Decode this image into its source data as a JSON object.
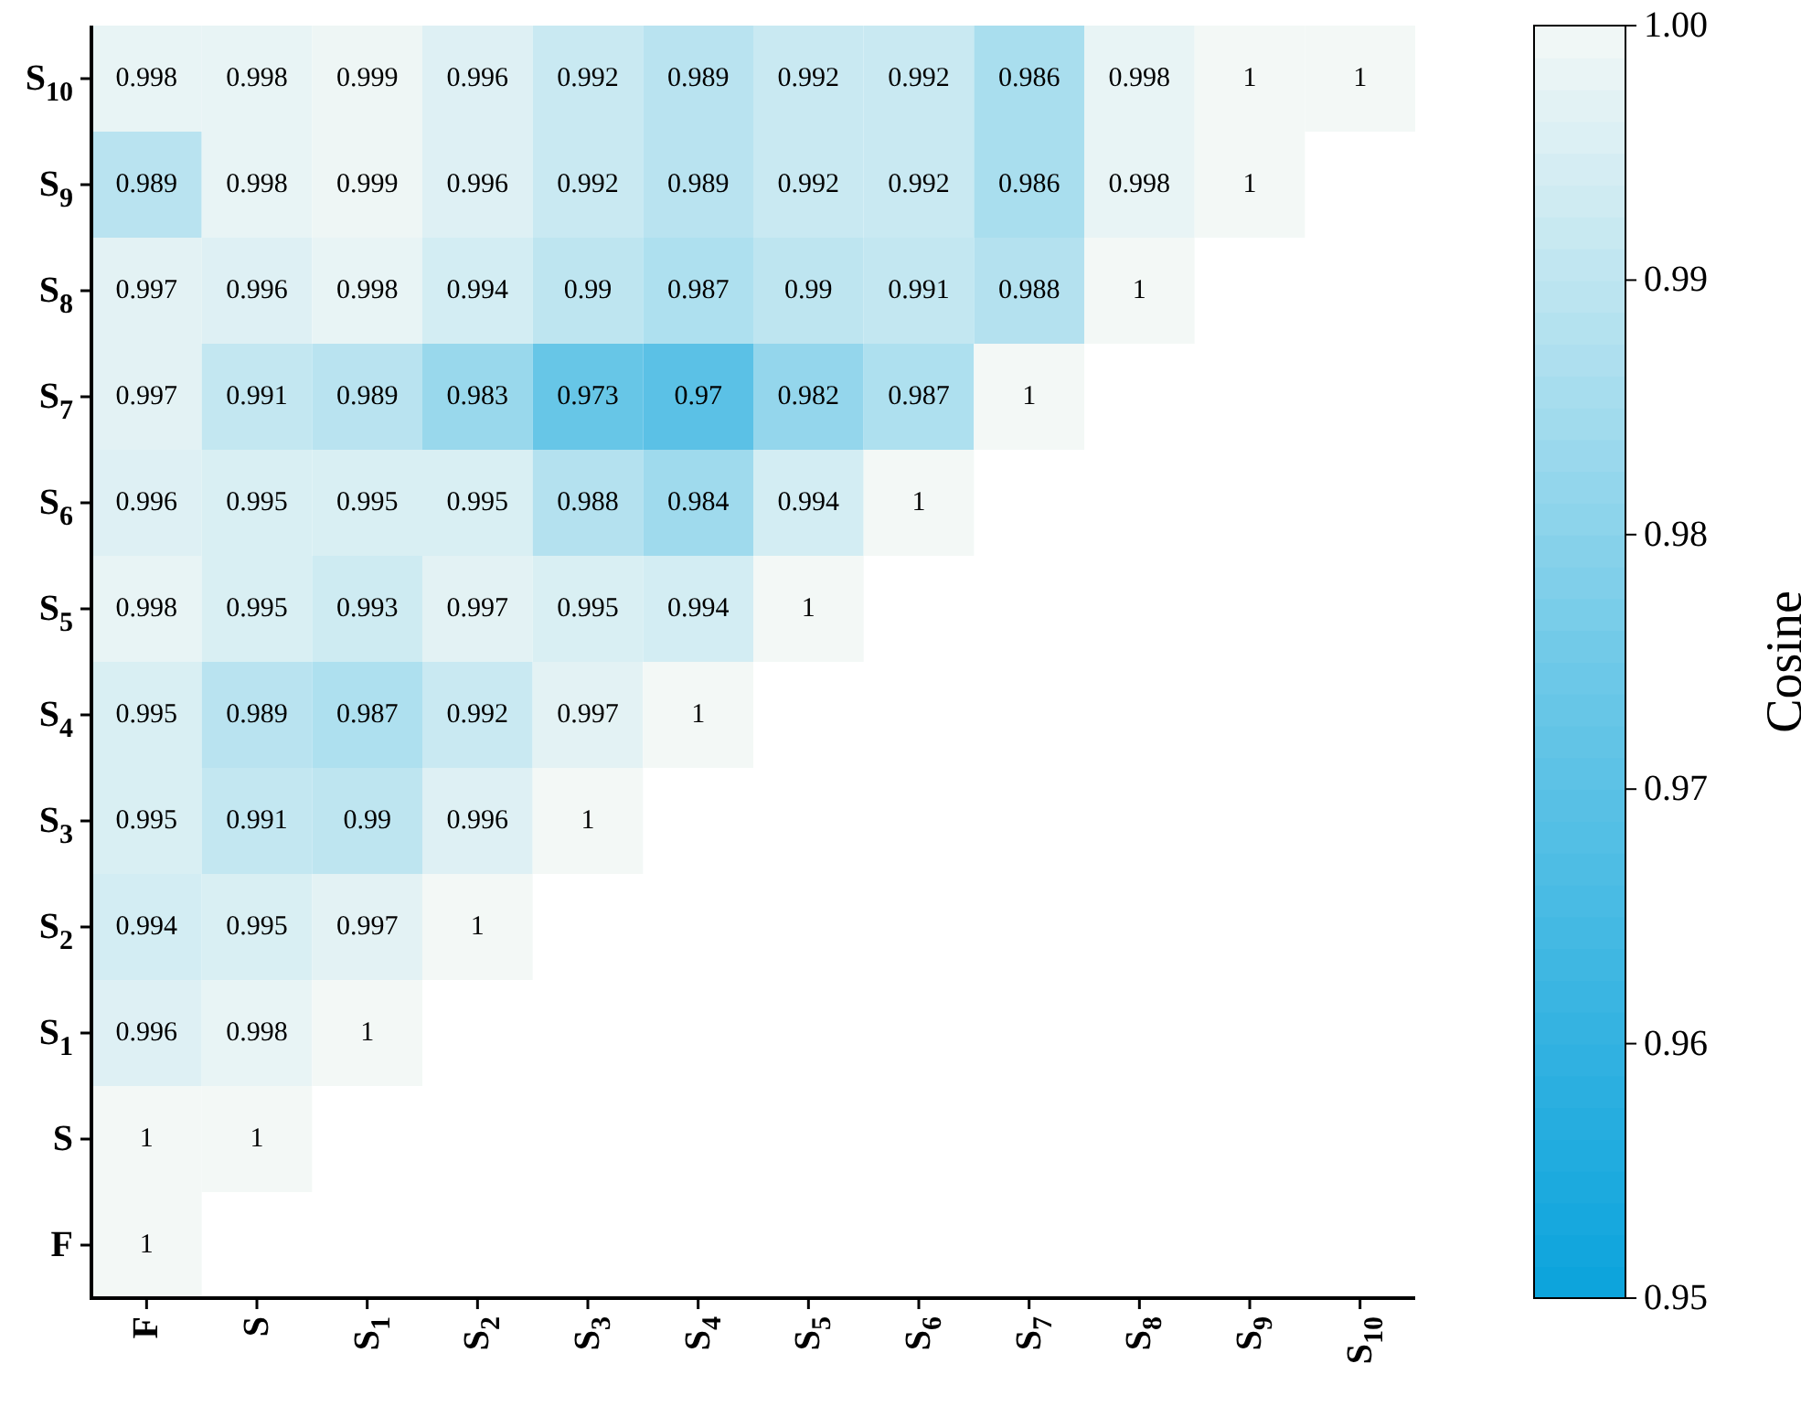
{
  "chart_data": {
    "type": "heatmap",
    "clabel": "Cosine",
    "categories": [
      "F",
      "S",
      "S$_{1}$",
      "S$_{2}$",
      "S$_{3}$",
      "S$_{4}$",
      "S$_{5}$",
      "S$_{6}$",
      "S$_{7}$",
      "S$_{8}$",
      "S$_{9}$",
      "S$_{10}$"
    ],
    "y_categories": [
      "S$_{10}$",
      "S$_{9}$",
      "S$_{8}$",
      "S$_{7}$",
      "S$_{6}$",
      "S$_{5}$",
      "S$_{4}$",
      "S$_{3}$",
      "S$_{2}$",
      "S$_{1}$",
      "S",
      "F"
    ],
    "cells": [
      [
        0.998,
        0.998,
        0.999,
        0.996,
        0.992,
        0.989,
        0.992,
        0.992,
        0.986,
        0.998,
        1,
        1
      ],
      [
        0.989,
        0.998,
        0.999,
        0.996,
        0.992,
        0.989,
        0.992,
        0.992,
        0.986,
        0.998,
        1,
        null
      ],
      [
        0.997,
        0.996,
        0.998,
        0.994,
        0.99,
        0.987,
        0.99,
        0.991,
        0.988,
        1,
        null,
        null
      ],
      [
        0.997,
        0.991,
        0.989,
        0.983,
        0.973,
        0.97,
        0.982,
        0.987,
        1,
        null,
        null,
        null
      ],
      [
        0.996,
        0.995,
        0.995,
        0.995,
        0.988,
        0.984,
        0.994,
        1,
        null,
        null,
        null,
        null
      ],
      [
        0.998,
        0.995,
        0.993,
        0.997,
        0.995,
        0.994,
        1,
        null,
        null,
        null,
        null,
        null
      ],
      [
        0.995,
        0.989,
        0.987,
        0.992,
        0.997,
        1,
        null,
        null,
        null,
        null,
        null,
        null
      ],
      [
        0.995,
        0.991,
        0.99,
        0.996,
        1,
        null,
        null,
        null,
        null,
        null,
        null,
        null
      ],
      [
        0.994,
        0.995,
        0.997,
        1,
        null,
        null,
        null,
        null,
        null,
        null,
        null,
        null
      ],
      [
        0.996,
        0.998,
        1,
        null,
        null,
        null,
        null,
        null,
        null,
        null,
        null,
        null
      ],
      [
        1,
        1,
        null,
        null,
        null,
        null,
        null,
        null,
        null,
        null,
        null,
        null
      ],
      [
        1,
        null,
        null,
        null,
        null,
        null,
        null,
        null,
        null,
        null,
        null,
        null
      ]
    ],
    "clim": [
      0.95,
      1
    ],
    "cticks": [
      0.95,
      0.96,
      0.97,
      0.98,
      0.99,
      {
        "value": 1,
        "label": "1.00"
      }
    ],
    "data_labels": true
  }
}
